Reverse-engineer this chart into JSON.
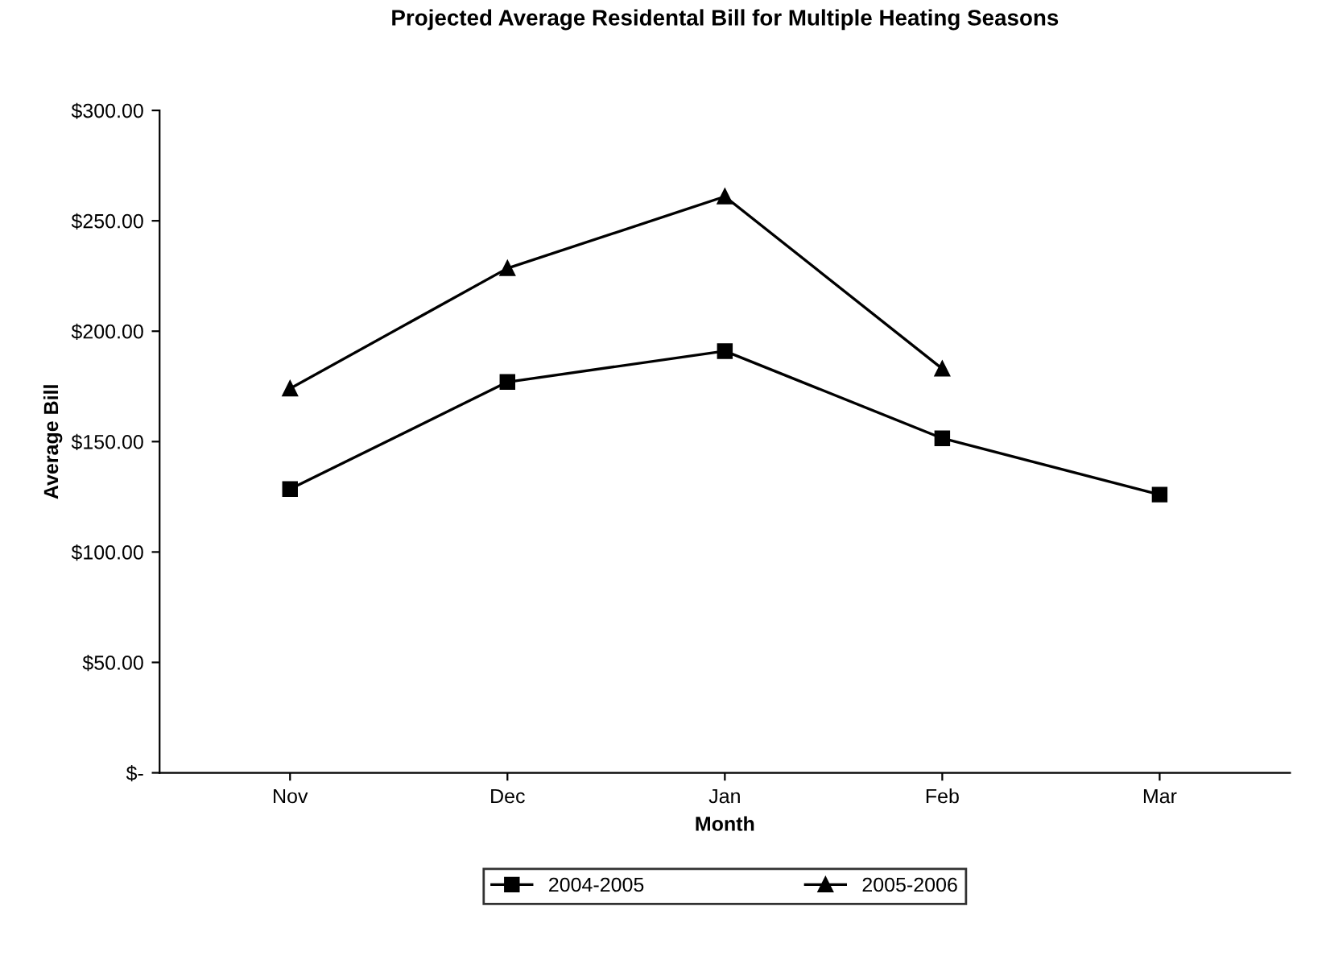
{
  "chart_data": {
    "type": "line",
    "title": "Projected Average Residental Bill for Multiple Heating Seasons",
    "xlabel": "Month",
    "ylabel": "Average Bill",
    "categories": [
      "Nov",
      "Dec",
      "Jan",
      "Feb",
      "Mar"
    ],
    "series": [
      {
        "name": "2004-2005",
        "color": "#000000",
        "marker": "square",
        "values": [
          128.5,
          177,
          191,
          151.5,
          126
        ]
      },
      {
        "name": "2005-2006",
        "color": "#000000",
        "marker": "triangle",
        "values": [
          174,
          228.5,
          261,
          183,
          null
        ]
      }
    ],
    "ylim": [
      0,
      300
    ],
    "yticks": [
      {
        "value": 0,
        "label": "$-"
      },
      {
        "value": 50,
        "label": "$50.00"
      },
      {
        "value": 100,
        "label": "$100.00"
      },
      {
        "value": 150,
        "label": "$150.00"
      },
      {
        "value": 200,
        "label": "$200.00"
      },
      {
        "value": 250,
        "label": "$250.00"
      },
      {
        "value": 300,
        "label": "$300.00"
      }
    ],
    "grid": false,
    "legend": "bottom",
    "line_style": "solid"
  }
}
